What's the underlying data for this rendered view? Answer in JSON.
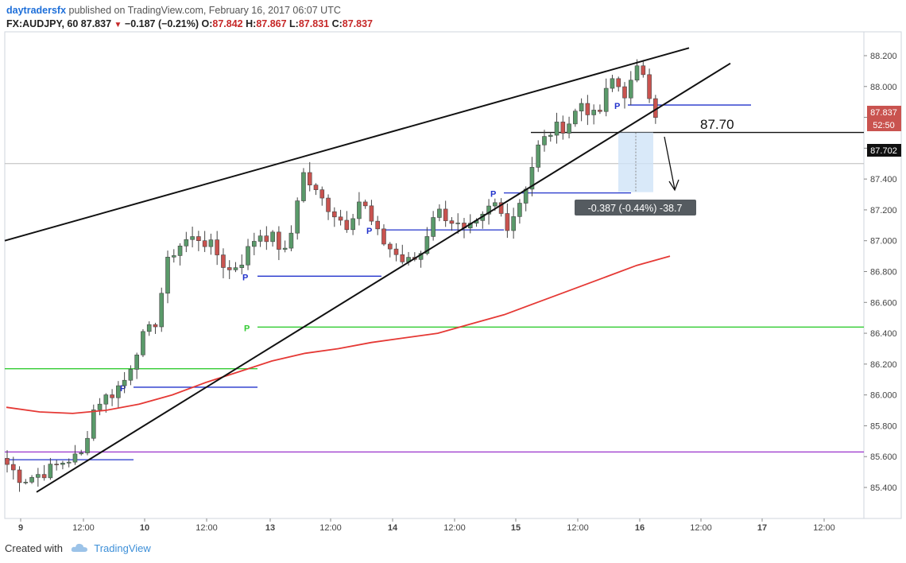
{
  "header": {
    "author": "daytradersfx",
    "published": "published on TradingView.com, February 16, 2017 06:07 UTC",
    "symbol": "FX:AUDJPY, 60",
    "last": "87.837",
    "change": "−0.187 (−0.21%)",
    "open_label": "O:",
    "open": "87.842",
    "high_label": "H:",
    "high": "87.867",
    "low_label": "L:",
    "low": "87.831",
    "close_label": "C:",
    "close": "87.837"
  },
  "footer": {
    "created": "Created with",
    "brand": "TradingView"
  },
  "colors": {
    "up": "#5a9a6a",
    "down": "#c9534f",
    "ma": "#e53935",
    "pivot_blue": "#2233cc",
    "pivot_green": "#33cc33",
    "purple": "#9933cc",
    "trend": "#111111"
  },
  "labels": {
    "level_text": "87.70",
    "measure_text": "-0.387 (-0.44%) -38.7",
    "price_tag_last": "87.837",
    "price_tag_time": "52:50",
    "price_tag_level": "87.702",
    "pivot_letter": "P"
  },
  "chart_data": {
    "type": "candlestick",
    "x_tick_labels": [
      "9",
      "12:00",
      "10",
      "12:00",
      "13",
      "12:00",
      "14",
      "12:00",
      "15",
      "12:00",
      "16",
      "12:00",
      "17",
      "12:00"
    ],
    "y_ticks": [
      85.4,
      85.6,
      85.8,
      86.0,
      86.2,
      86.4,
      86.6,
      86.8,
      87.0,
      87.2,
      87.4,
      87.6,
      87.8,
      88.0,
      88.2
    ],
    "y_tick_labels": [
      "85.400",
      "85.600",
      "85.800",
      "86.000",
      "86.200",
      "86.400",
      "86.600",
      "86.800",
      "87.000",
      "87.200",
      "87.400",
      "87.600",
      "87.800",
      "88.000",
      "88.200"
    ],
    "ylim": [
      85.2,
      88.32
    ],
    "close_path": [
      85.55,
      85.45,
      85.48,
      85.52,
      85.58,
      85.6,
      85.95,
      86.0,
      86.1,
      86.35,
      86.45,
      86.9,
      87.0,
      87.02,
      86.95,
      86.8,
      86.88,
      87.05,
      87.02,
      86.9,
      87.45,
      87.3,
      87.2,
      87.1,
      87.28,
      87.05,
      86.95,
      86.85,
      86.9,
      87.2,
      87.15,
      87.05,
      87.1,
      87.25,
      87.1,
      87.3,
      87.6,
      87.72,
      87.75,
      87.9,
      87.78,
      88.05,
      87.95,
      88.15,
      87.83
    ],
    "candles_count": 106,
    "moving_average": [
      85.92,
      85.89,
      85.88,
      85.9,
      85.94,
      86.0,
      86.08,
      86.15,
      86.22,
      86.27,
      86.3,
      86.34,
      86.37,
      86.4,
      86.46,
      86.52,
      86.6,
      86.68,
      86.76,
      86.84,
      86.9
    ],
    "trendlines": [
      {
        "name": "upper",
        "from": [
          0,
          87.0
        ],
        "to": [
          113,
          88.25
        ]
      },
      {
        "name": "lower",
        "from": [
          5,
          85.37
        ],
        "to": [
          117,
          88.15
        ]
      }
    ],
    "horizontal_levels": [
      {
        "price": 85.63,
        "color": "purple"
      },
      {
        "price": 86.17,
        "color": "green"
      },
      {
        "price": 86.44,
        "color": "green",
        "label": "P"
      },
      {
        "price": 86.77,
        "color": "blue",
        "label": "P"
      },
      {
        "price": 86.05,
        "color": "blue",
        "label": "P"
      },
      {
        "price": 85.58,
        "color": "blue"
      },
      {
        "price": 87.07,
        "color": "blue",
        "label": "P"
      },
      {
        "price": 87.31,
        "color": "blue",
        "label": "P"
      },
      {
        "price": 87.88,
        "color": "blue",
        "label": "P"
      },
      {
        "price": 87.702,
        "color": "black"
      }
    ]
  }
}
